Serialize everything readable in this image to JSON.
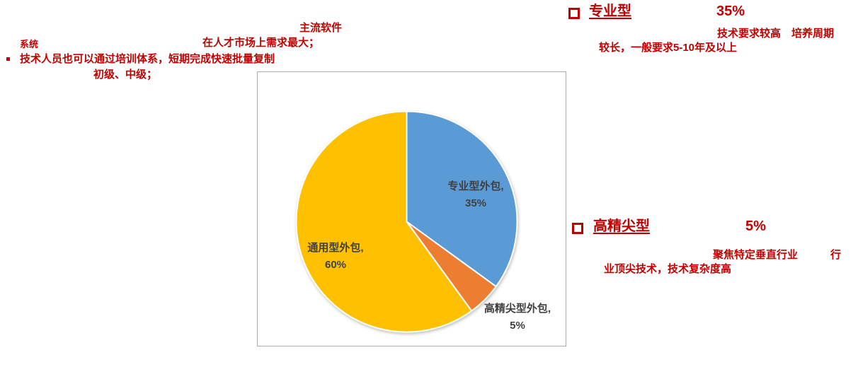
{
  "colors": {
    "accent_red": "#C00000",
    "label_gray": "#404040",
    "chart_border": "#ABABAB",
    "pie_stroke": "#FFFFFF"
  },
  "top_left_notes": {
    "software_line": "主流软件",
    "system_word": "系统",
    "demand_line": "在人才市场上需求最大；",
    "training_line": "技术人员也可以通过培训体系，短期完成快速批量复制",
    "levels_line": "初级、中级；",
    "bullet_style": "filled-square"
  },
  "professional_section": {
    "bullet_style": "hollow-square",
    "title": "专业型",
    "value": "35%",
    "desc_line1": "技术要求较高　培养周期",
    "desc_line2": "较长，一般要求5-10年及以上"
  },
  "high_end_section": {
    "bullet_style": "hollow-square",
    "title": "高精尖型",
    "value": "5%",
    "desc_line1a": "聚焦特定垂直行业",
    "desc_line1b": "行",
    "desc_line2": "业顶尖技术，技术复杂度高"
  },
  "chart_data": {
    "type": "pie",
    "labels": [
      "专业型外包",
      "高精尖型外包",
      "通用型外包"
    ],
    "values": [
      35,
      5,
      60
    ],
    "colors": [
      "#5B9BD5",
      "#ED7D31",
      "#FFC000"
    ],
    "start_angle_deg": 0,
    "direction": "clockwise",
    "legend": "none",
    "title": "",
    "data_labels": [
      {
        "line1": "专业型外包,",
        "line2": "35%",
        "placement": "inside"
      },
      {
        "line1": "高精尖型外包,",
        "line2": "5%",
        "placement": "outside-bottom-right"
      },
      {
        "line1": "通用型外包,",
        "line2": "60%",
        "placement": "inside"
      }
    ]
  }
}
